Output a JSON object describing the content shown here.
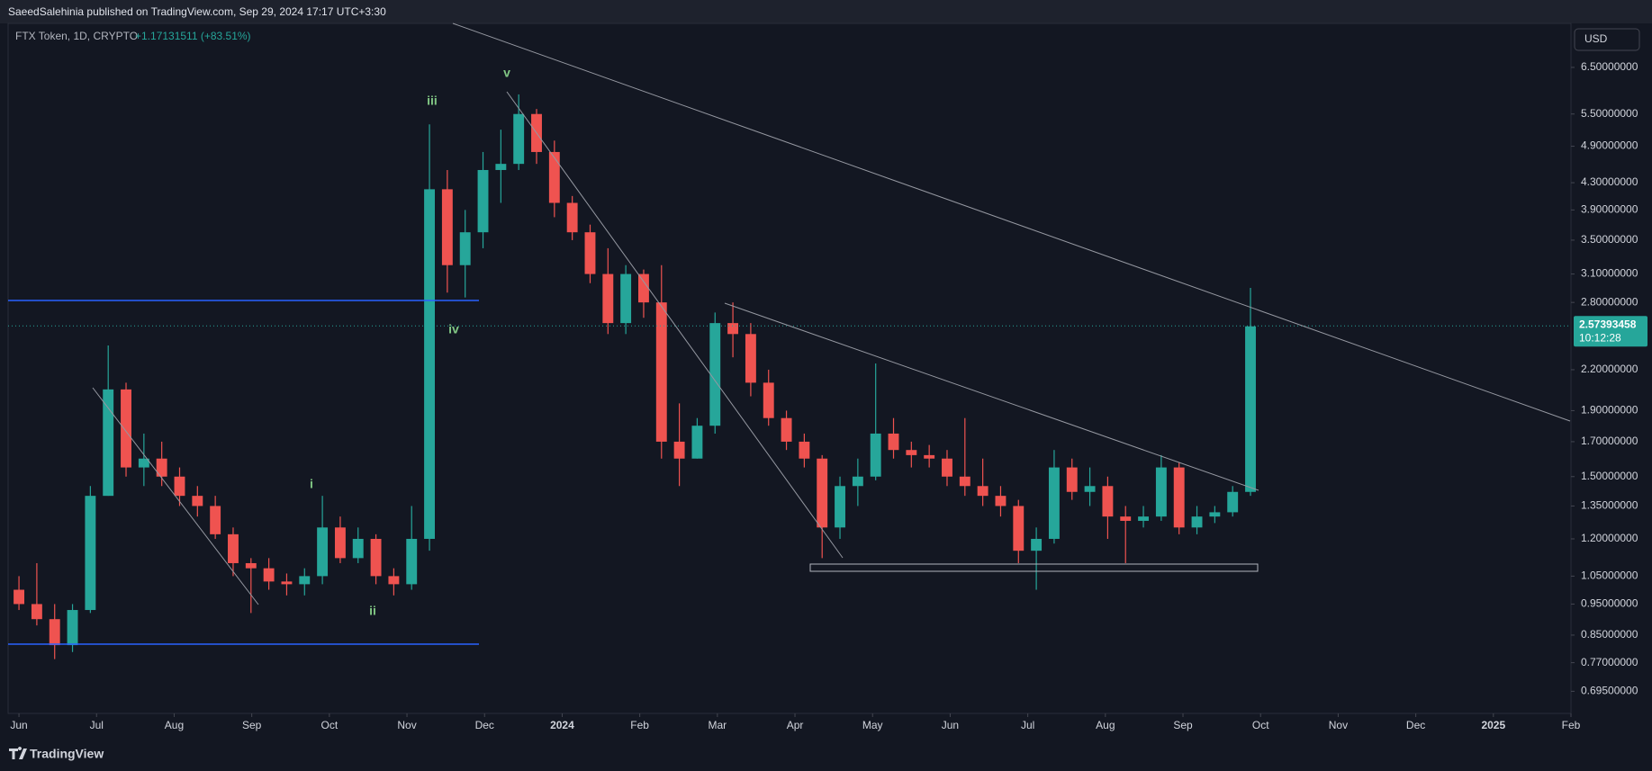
{
  "header": "SaeedSalehinia published on TradingView.com, Sep 29, 2024 17:17 UTC+3:30",
  "footer": "TradingView",
  "chart_data": {
    "type": "candlestick",
    "symbol": "FTX Token, 1D, CRYPTO",
    "change": "+1.17131511 (+83.51%)",
    "currency": "USD",
    "last_price": 2.57393458,
    "countdown": "10:12:28",
    "wave_labels": [
      "i",
      "ii",
      "iii",
      "iv",
      "v"
    ],
    "log_scale": true,
    "up_color": "#26a69a",
    "down_color": "#ef5350",
    "x": [
      0,
      0.23,
      0.46,
      0.69,
      0.92,
      1.15,
      1.38,
      1.61,
      1.84,
      2.07,
      2.3,
      2.53,
      2.76,
      2.99,
      3.22,
      3.45,
      3.68,
      3.91,
      4.14,
      4.37,
      4.6,
      4.83,
      5.06,
      5.29,
      5.52,
      5.75,
      5.98,
      6.21,
      6.44,
      6.67,
      6.9,
      7.13,
      7.36,
      7.59,
      7.82,
      8.05,
      8.28,
      8.51,
      8.74,
      8.97,
      9.2,
      9.43,
      9.66,
      9.89,
      10.12,
      10.35,
      10.58,
      10.81,
      11.04,
      11.27,
      11.5,
      11.73,
      11.96,
      12.19,
      12.42,
      12.65,
      12.88,
      13.11,
      13.34,
      13.57,
      13.8,
      14.03,
      14.26,
      14.49,
      14.72,
      14.95,
      15.18,
      15.41,
      15.64,
      15.87
    ],
    "open": [
      1.0,
      0.95,
      0.9,
      0.82,
      0.93,
      1.4,
      2.05,
      1.55,
      1.6,
      1.5,
      1.4,
      1.35,
      1.22,
      1.1,
      1.08,
      1.03,
      1.02,
      1.05,
      1.25,
      1.12,
      1.2,
      1.05,
      1.02,
      1.2,
      4.2,
      3.2,
      3.6,
      4.5,
      4.6,
      5.5,
      4.8,
      4.0,
      3.6,
      3.1,
      2.6,
      3.1,
      2.8,
      1.7,
      1.6,
      1.8,
      2.6,
      2.5,
      2.1,
      1.85,
      1.7,
      1.6,
      1.25,
      1.45,
      1.5,
      1.75,
      1.65,
      1.62,
      1.6,
      1.5,
      1.45,
      1.4,
      1.35,
      1.15,
      1.2,
      1.55,
      1.42,
      1.45,
      1.3,
      1.28,
      1.3,
      1.55,
      1.25,
      1.3,
      1.32,
      1.42
    ],
    "high": [
      1.05,
      1.1,
      0.95,
      0.95,
      1.45,
      2.4,
      2.1,
      1.75,
      1.7,
      1.55,
      1.45,
      1.4,
      1.25,
      1.12,
      1.12,
      1.06,
      1.08,
      1.4,
      1.3,
      1.25,
      1.22,
      1.08,
      1.35,
      5.3,
      4.5,
      3.9,
      4.8,
      5.2,
      5.9,
      5.6,
      5.0,
      4.1,
      3.7,
      3.4,
      3.2,
      3.15,
      3.2,
      1.95,
      1.85,
      2.7,
      2.8,
      2.6,
      2.2,
      1.9,
      1.75,
      1.62,
      1.5,
      1.6,
      2.25,
      1.85,
      1.7,
      1.68,
      1.65,
      1.85,
      1.6,
      1.45,
      1.38,
      1.25,
      1.65,
      1.6,
      1.55,
      1.5,
      1.35,
      1.35,
      1.62,
      1.58,
      1.35,
      1.35,
      1.45,
      2.95
    ],
    "low": [
      0.93,
      0.88,
      0.78,
      0.8,
      0.92,
      1.4,
      1.5,
      1.45,
      1.45,
      1.35,
      1.3,
      1.2,
      1.05,
      0.92,
      1.0,
      0.98,
      0.98,
      1.02,
      1.1,
      1.1,
      1.02,
      0.98,
      1.0,
      1.15,
      2.9,
      2.85,
      3.4,
      4.0,
      4.5,
      4.6,
      3.8,
      3.5,
      3.0,
      2.5,
      2.5,
      2.65,
      1.6,
      1.45,
      1.6,
      1.75,
      2.3,
      2.0,
      1.8,
      1.65,
      1.55,
      1.12,
      1.2,
      1.35,
      1.48,
      1.6,
      1.55,
      1.55,
      1.45,
      1.4,
      1.35,
      1.3,
      1.1,
      1.0,
      1.18,
      1.38,
      1.35,
      1.2,
      1.1,
      1.25,
      1.28,
      1.22,
      1.22,
      1.27,
      1.3,
      1.4
    ],
    "close": [
      0.95,
      0.9,
      0.82,
      0.93,
      1.4,
      2.05,
      1.55,
      1.6,
      1.5,
      1.4,
      1.35,
      1.22,
      1.1,
      1.08,
      1.03,
      1.02,
      1.05,
      1.25,
      1.12,
      1.2,
      1.05,
      1.02,
      1.2,
      4.2,
      3.2,
      3.6,
      4.5,
      4.6,
      5.5,
      4.8,
      4.0,
      3.6,
      3.1,
      2.6,
      3.1,
      2.8,
      1.7,
      1.6,
      1.8,
      2.6,
      2.5,
      2.1,
      1.85,
      1.7,
      1.6,
      1.25,
      1.45,
      1.5,
      1.75,
      1.65,
      1.62,
      1.6,
      1.5,
      1.45,
      1.4,
      1.35,
      1.15,
      1.2,
      1.55,
      1.42,
      1.45,
      1.3,
      1.28,
      1.3,
      1.55,
      1.25,
      1.3,
      1.32,
      1.42,
      2.57
    ],
    "xlim": [
      -0.14,
      20.0
    ],
    "xticks": [
      {
        "value": 0,
        "label": "Jun"
      },
      {
        "value": 1,
        "label": "Jul"
      },
      {
        "value": 2,
        "label": "Aug"
      },
      {
        "value": 3,
        "label": "Sep"
      },
      {
        "value": 4,
        "label": "Oct"
      },
      {
        "value": 5,
        "label": "Nov"
      },
      {
        "value": 6,
        "label": "Dec"
      },
      {
        "value": 7,
        "label": "2024"
      },
      {
        "value": 8,
        "label": "Feb"
      },
      {
        "value": 9,
        "label": "Mar"
      },
      {
        "value": 10,
        "label": "Apr"
      },
      {
        "value": 11,
        "label": "May"
      },
      {
        "value": 12,
        "label": "Jun"
      },
      {
        "value": 13,
        "label": "Jul"
      },
      {
        "value": 14,
        "label": "Aug"
      },
      {
        "value": 15,
        "label": "Sep"
      },
      {
        "value": 16,
        "label": "Oct"
      },
      {
        "value": 17,
        "label": "Nov"
      },
      {
        "value": 18,
        "label": "Dec"
      },
      {
        "value": 19,
        "label": "2025"
      },
      {
        "value": 20,
        "label": "Feb"
      }
    ],
    "ylim": [
      0.642,
      7.61
    ],
    "yticks": [
      {
        "value": 6.5,
        "label": "6.50000000"
      },
      {
        "value": 5.5,
        "label": "5.50000000"
      },
      {
        "value": 4.9,
        "label": "4.90000000"
      },
      {
        "value": 4.3,
        "label": "4.30000000"
      },
      {
        "value": 3.9,
        "label": "3.90000000"
      },
      {
        "value": 3.5,
        "label": "3.50000000"
      },
      {
        "value": 3.1,
        "label": "3.10000000"
      },
      {
        "value": 2.8,
        "label": "2.80000000"
      },
      {
        "value": 2.2,
        "label": "2.20000000"
      },
      {
        "value": 1.9,
        "label": "1.90000000"
      },
      {
        "value": 1.7,
        "label": "1.70000000"
      },
      {
        "value": 1.5,
        "label": "1.50000000"
      },
      {
        "value": 1.35,
        "label": "1.35000000"
      },
      {
        "value": 1.2,
        "label": "1.20000000"
      },
      {
        "value": 1.05,
        "label": "1.05000000"
      },
      {
        "value": 0.95,
        "label": "0.95000000"
      },
      {
        "value": 0.85,
        "label": "0.85000000"
      },
      {
        "value": 0.77,
        "label": "0.77000000"
      },
      {
        "value": 0.695,
        "label": "0.69500000"
      }
    ]
  }
}
